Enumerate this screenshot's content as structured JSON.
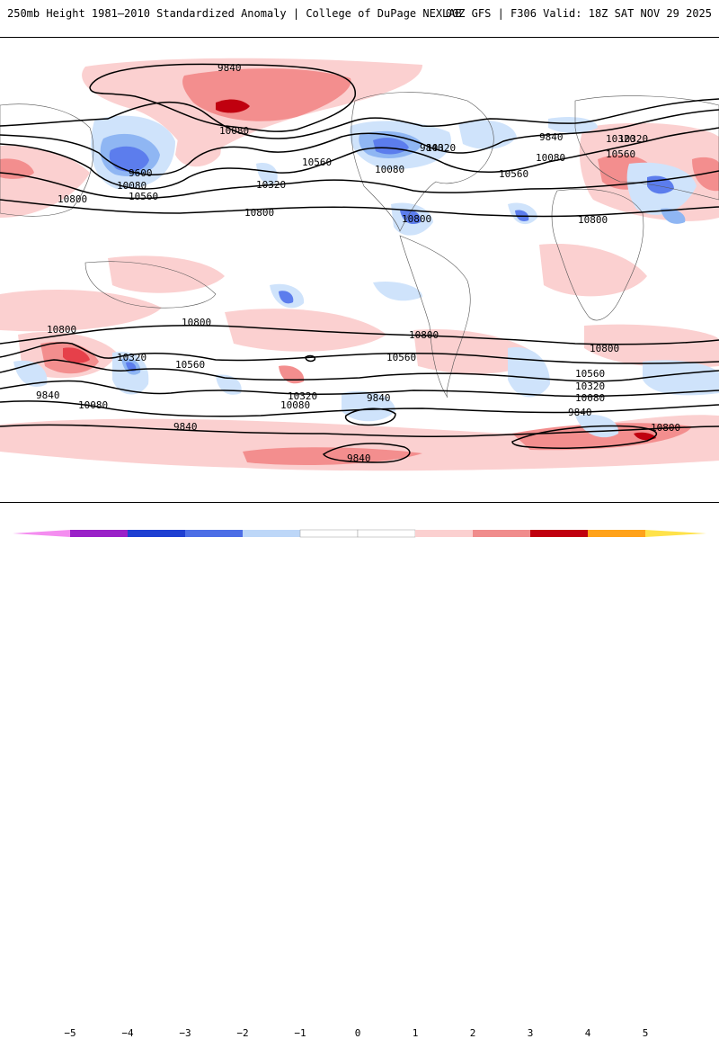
{
  "header": {
    "title_left": "250mb Height 1981–2010 Standardized Anomaly | College of DuPage NEXLAB",
    "title_right": "00Z GFS | F306 Valid: 18Z SAT NOV 29 2025"
  },
  "colors": {
    "pos1": "#fbd0d0",
    "pos2": "#f38e8e",
    "pos3": "#e6404a",
    "pos4": "#c0000f",
    "neg1": "#cfe3fb",
    "neg2": "#8fb6f3",
    "neg3": "#5c7ded",
    "neg4": "#2346d8"
  },
  "contours": {
    "labels": [
      {
        "text": "9840"
      },
      {
        "text": "10080"
      },
      {
        "text": "10560"
      },
      {
        "text": "10320"
      },
      {
        "text": "9600"
      },
      {
        "text": "10080"
      },
      {
        "text": "10560"
      },
      {
        "text": "10800"
      },
      {
        "text": "10800"
      },
      {
        "text": "10560"
      },
      {
        "text": "10320"
      },
      {
        "text": "10080"
      },
      {
        "text": "9840"
      },
      {
        "text": "10320"
      },
      {
        "text": "10800"
      },
      {
        "text": "9840"
      },
      {
        "text": "10320"
      },
      {
        "text": "10560"
      },
      {
        "text": "10080"
      },
      {
        "text": "10800"
      },
      {
        "text": "10800"
      },
      {
        "text": "10800"
      },
      {
        "text": "10800"
      },
      {
        "text": "10320"
      },
      {
        "text": "10560"
      },
      {
        "text": "9840"
      },
      {
        "text": "10080"
      },
      {
        "text": "10560"
      },
      {
        "text": "10320"
      },
      {
        "text": "10080"
      },
      {
        "text": "9840"
      },
      {
        "text": "10800"
      },
      {
        "text": "10560"
      },
      {
        "text": "10320"
      },
      {
        "text": "10080"
      },
      {
        "text": "9840"
      },
      {
        "text": "9840"
      },
      {
        "text": "9840"
      },
      {
        "text": "10800"
      }
    ]
  },
  "legend": {
    "ticks": [
      "−5",
      "−4",
      "−3",
      "−2",
      "−1",
      "0",
      "1",
      "2",
      "3",
      "4",
      "5"
    ]
  }
}
